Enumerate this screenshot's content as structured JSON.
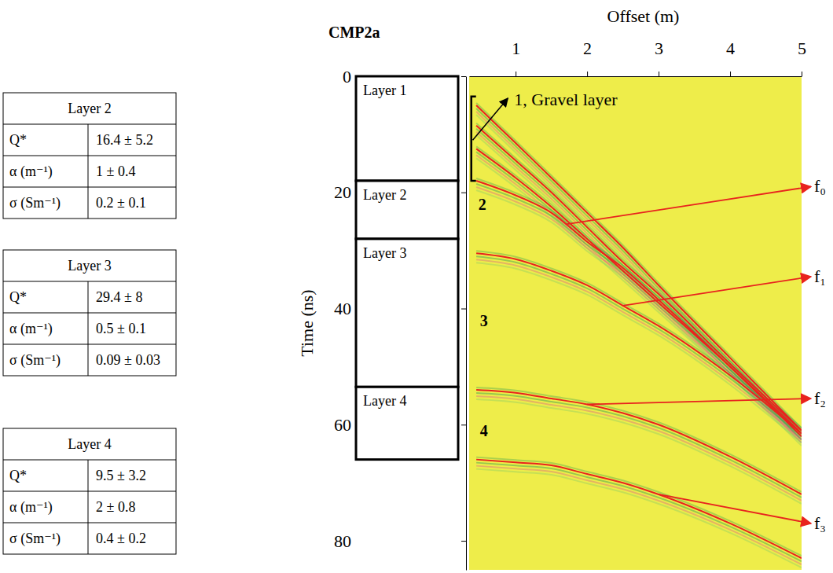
{
  "tables": [
    {
      "title": "Layer 2",
      "rows": [
        [
          "Q*",
          "16.4 ± 5.2"
        ],
        [
          "α (m⁻¹)",
          "1 ± 0.4"
        ],
        [
          "σ (Sm⁻¹)",
          "0.2 ± 0.1"
        ]
      ]
    },
    {
      "title": "Layer 3",
      "rows": [
        [
          "Q*",
          "29.4 ± 8"
        ],
        [
          "α (m⁻¹)",
          "0.5 ± 0.1"
        ],
        [
          "σ (Sm⁻¹)",
          "0.09 ± 0.03"
        ]
      ]
    },
    {
      "title": "Layer 4",
      "rows": [
        [
          "Q*",
          "9.5 ± 3.2"
        ],
        [
          "α (m⁻¹)",
          "2 ± 0.8"
        ],
        [
          "σ (Sm⁻¹)",
          "0.4 ± 0.2"
        ]
      ]
    }
  ],
  "chart_data": {
    "type": "line",
    "title": "CMP2a",
    "x_label": "Offset (m)",
    "y_label": "Time (ns)",
    "xlim": [
      0.35,
      5
    ],
    "ylim": [
      0,
      85
    ],
    "xticks": [
      1,
      2,
      3,
      4,
      5
    ],
    "yticks": [
      0,
      20,
      40,
      60,
      80
    ],
    "x": [
      0.45,
      1,
      1.5,
      2,
      2.5,
      3,
      4,
      5
    ],
    "series": [
      {
        "color": "#e8231e",
        "values": [
          5,
          11.5,
          17.5,
          23.5,
          29.5,
          36,
          48.5,
          61
        ]
      },
      {
        "color": "#e8231e",
        "values": [
          8.5,
          14.5,
          20,
          26,
          32,
          37.5,
          49.5,
          61
        ]
      },
      {
        "color": "#e8231e",
        "values": [
          12.5,
          17.5,
          22.5,
          28,
          33.5,
          39,
          50,
          61.5
        ]
      },
      {
        "color": "#e8231e",
        "values": [
          18,
          20.5,
          23.5,
          28.5,
          33,
          38.5,
          50,
          62
        ]
      },
      {
        "color": "#e8231e",
        "values": [
          30.5,
          31.5,
          33.5,
          36,
          39.5,
          43,
          51.5,
          61.5
        ]
      },
      {
        "color": "#e8231e",
        "values": [
          54,
          54.5,
          55.5,
          56.5,
          58,
          60,
          65.5,
          72
        ]
      },
      {
        "color": "#e8231e",
        "values": [
          66,
          66.5,
          67,
          68.5,
          70,
          72,
          77,
          83
        ]
      }
    ],
    "layers": [
      {
        "label": "Layer 1",
        "top": 0,
        "bottom": 18
      },
      {
        "label": "Layer 2",
        "top": 18,
        "bottom": 28
      },
      {
        "label": "Layer 3",
        "top": 28,
        "bottom": 53.5
      },
      {
        "label": "Layer 4",
        "top": 53.5,
        "bottom": 66
      }
    ],
    "layer_labels": [
      {
        "text": "2",
        "x": 0.48,
        "y": 23
      },
      {
        "text": "3",
        "x": 0.5,
        "y": 43
      },
      {
        "text": "4",
        "x": 0.5,
        "y": 62
      }
    ],
    "gravel": {
      "text": "1, Gravel layer",
      "x": 0.98,
      "y": 5,
      "bracket_x": 0.38,
      "bracket": [
        3.5,
        18
      ],
      "arrow_from": [
        0.4,
        11
      ]
    },
    "arrows": [
      {
        "text": "f₀",
        "x": 1.7,
        "y": 25.5,
        "label_y": 19
      },
      {
        "text": "f₁",
        "x": 2.5,
        "y": 39.5,
        "label_y": 34.5
      },
      {
        "text": "f₂",
        "x": 2,
        "y": 56.5,
        "label_y": 55.5
      },
      {
        "text": "f₃",
        "x": 3,
        "y": 72,
        "label_y": 77
      }
    ]
  }
}
